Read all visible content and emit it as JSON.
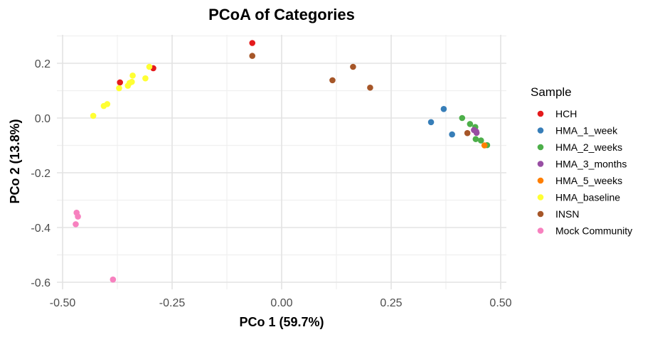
{
  "chart_data": {
    "type": "scatter",
    "title": "PCoA of Categories",
    "xlabel": "PCo 1 (59.7%)",
    "ylabel": "PCo 2 (13.8%)",
    "xlim": [
      -0.5,
      0.5
    ],
    "ylim": [
      -0.6,
      0.3
    ],
    "xticks": [
      -0.5,
      -0.25,
      0,
      0.25,
      0.5
    ],
    "xtick_labels": [
      "-0.50",
      "-0.25",
      "0.00",
      "0.25",
      "0.50"
    ],
    "yticks": [
      -0.6,
      -0.4,
      -0.2,
      0,
      0.2
    ],
    "ytick_labels": [
      "-0.6",
      "-0.4",
      "-0.2",
      "0.0",
      "0.2"
    ],
    "grid": true,
    "legend_position": "right",
    "legend_title": "Sample",
    "series": [
      {
        "name": "HCH",
        "color": "#E41A1C",
        "points": [
          {
            "x": -0.369,
            "y": 0.13
          },
          {
            "x": -0.293,
            "y": 0.182
          },
          {
            "x": -0.067,
            "y": 0.274
          }
        ]
      },
      {
        "name": "HMA_1_week",
        "color": "#377EB8",
        "points": [
          {
            "x": 0.341,
            "y": -0.015
          },
          {
            "x": 0.37,
            "y": 0.033
          },
          {
            "x": 0.389,
            "y": -0.06
          }
        ]
      },
      {
        "name": "HMA_2_weeks",
        "color": "#4DAF4A",
        "points": [
          {
            "x": 0.412,
            "y": 0.0
          },
          {
            "x": 0.43,
            "y": -0.022
          },
          {
            "x": 0.442,
            "y": -0.033
          },
          {
            "x": 0.443,
            "y": -0.077
          },
          {
            "x": 0.455,
            "y": -0.082
          },
          {
            "x": 0.469,
            "y": -0.099
          }
        ]
      },
      {
        "name": "HMA_3_months",
        "color": "#984EA3",
        "points": [
          {
            "x": 0.439,
            "y": -0.044
          },
          {
            "x": 0.444,
            "y": -0.049
          },
          {
            "x": 0.445,
            "y": -0.054
          }
        ]
      },
      {
        "name": "HMA_5_weeks",
        "color": "#FF7F00",
        "points": [
          {
            "x": 0.463,
            "y": -0.1
          }
        ]
      },
      {
        "name": "HMA_baseline",
        "color": "#FFFF33",
        "points": [
          {
            "x": -0.43,
            "y": 0.008
          },
          {
            "x": -0.406,
            "y": 0.044
          },
          {
            "x": -0.398,
            "y": 0.051
          },
          {
            "x": -0.371,
            "y": 0.109
          },
          {
            "x": -0.351,
            "y": 0.118
          },
          {
            "x": -0.347,
            "y": 0.128
          },
          {
            "x": -0.342,
            "y": 0.132
          },
          {
            "x": -0.34,
            "y": 0.155
          },
          {
            "x": -0.311,
            "y": 0.145
          },
          {
            "x": -0.302,
            "y": 0.187
          }
        ]
      },
      {
        "name": "INSN",
        "color": "#A65628",
        "points": [
          {
            "x": -0.067,
            "y": 0.227
          },
          {
            "x": 0.116,
            "y": 0.138
          },
          {
            "x": 0.163,
            "y": 0.187
          },
          {
            "x": 0.202,
            "y": 0.111
          },
          {
            "x": 0.424,
            "y": -0.055
          }
        ]
      },
      {
        "name": "Mock Community",
        "color": "#F781BF",
        "points": [
          {
            "x": -0.468,
            "y": -0.346
          },
          {
            "x": -0.465,
            "y": -0.36
          },
          {
            "x": -0.47,
            "y": -0.388
          },
          {
            "x": -0.385,
            "y": -0.59
          }
        ]
      }
    ]
  }
}
